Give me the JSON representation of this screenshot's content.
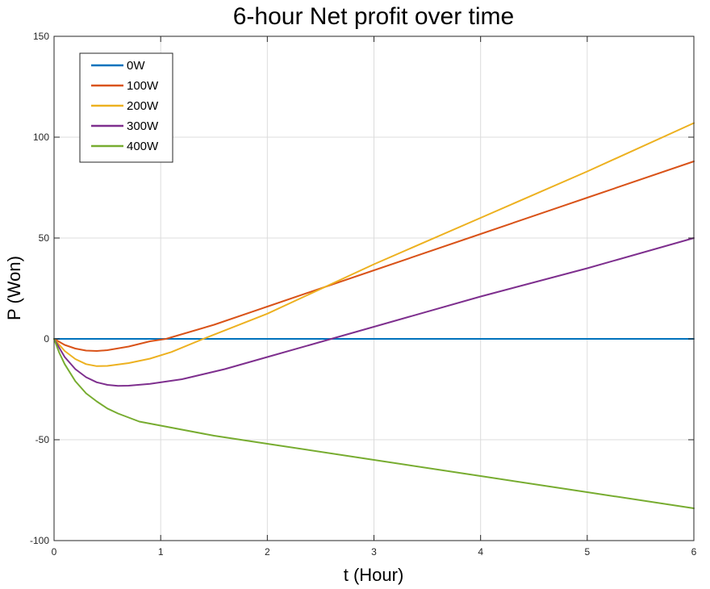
{
  "chart_data": {
    "type": "line",
    "title": "6-hour Net profit over time",
    "xlabel": "t (Hour)",
    "ylabel": "P (Won)",
    "xlim": [
      0,
      6
    ],
    "ylim": [
      -100,
      150
    ],
    "xticks": [
      0,
      1,
      2,
      3,
      4,
      5,
      6
    ],
    "yticks": [
      -100,
      -50,
      0,
      50,
      100,
      150
    ],
    "grid": true,
    "legend_position": "top-left",
    "series": [
      {
        "name": "0W",
        "color": "#0072BD",
        "x": [
          0,
          6
        ],
        "y": [
          0,
          0
        ]
      },
      {
        "name": "100W",
        "color": "#D95319",
        "x": [
          0,
          0.1,
          0.2,
          0.3,
          0.4,
          0.5,
          0.7,
          0.9,
          1.05,
          1.5,
          2,
          3,
          4,
          5,
          6
        ],
        "y": [
          0,
          -3,
          -4.8,
          -5.8,
          -6,
          -5.6,
          -3.8,
          -1.2,
          0,
          7,
          16,
          34,
          52,
          70,
          88
        ]
      },
      {
        "name": "200W",
        "color": "#EDB120",
        "x": [
          0,
          0.1,
          0.2,
          0.3,
          0.4,
          0.5,
          0.7,
          0.9,
          1.1,
          1.4,
          2,
          3,
          4,
          5,
          6
        ],
        "y": [
          0,
          -6,
          -10,
          -12.5,
          -13.5,
          -13.4,
          -12,
          -9.8,
          -6.5,
          0,
          12.5,
          37,
          60,
          83,
          107
        ]
      },
      {
        "name": "300W",
        "color": "#7E2F8E",
        "x": [
          0,
          0.1,
          0.2,
          0.3,
          0.4,
          0.5,
          0.6,
          0.7,
          0.9,
          1.2,
          1.6,
          2,
          2.6,
          3,
          4,
          5,
          6
        ],
        "y": [
          0,
          -9,
          -15,
          -19,
          -21.5,
          -22.8,
          -23.3,
          -23.2,
          -22.3,
          -20,
          -15,
          -9,
          0,
          6,
          21,
          35,
          50
        ]
      },
      {
        "name": "400W",
        "color": "#77AC30",
        "x": [
          0,
          0.05,
          0.1,
          0.2,
          0.3,
          0.4,
          0.5,
          0.6,
          0.8,
          1,
          1.5,
          2,
          3,
          4,
          5,
          6
        ],
        "y": [
          0,
          -7,
          -12.5,
          -21,
          -27,
          -31,
          -34.5,
          -37,
          -41,
          -43,
          -48,
          -52,
          -60,
          -68,
          -76,
          -84
        ]
      }
    ]
  }
}
